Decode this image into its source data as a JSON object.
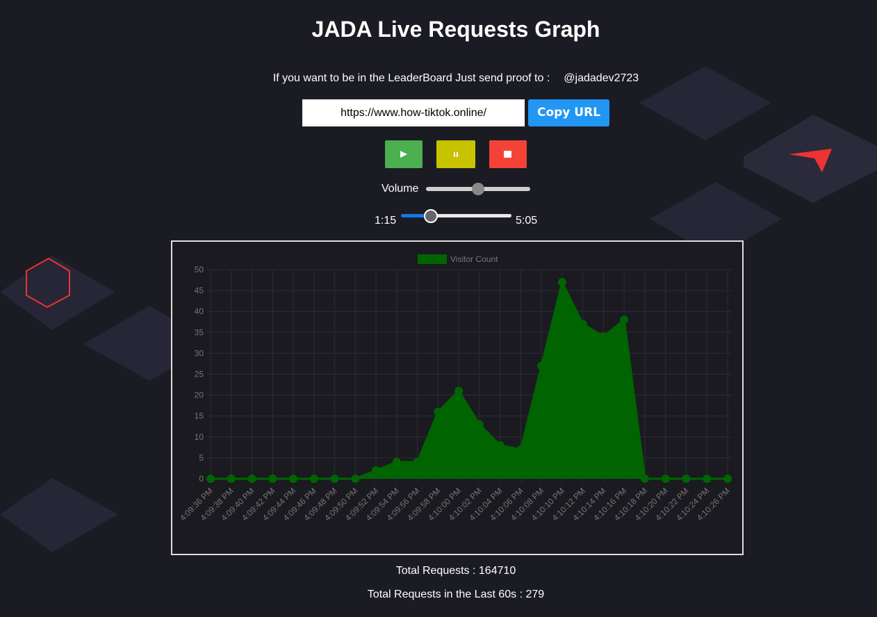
{
  "header": {
    "title": "JADA Live Requests Graph"
  },
  "leaderboard": {
    "text": "If you want to be in the LeaderBoard Just send proof to :",
    "handle": "@jadadev2723"
  },
  "url": {
    "value": "https://www.how-tiktok.online/",
    "button": "Copy URL"
  },
  "volume": {
    "label": "Volume"
  },
  "player": {
    "current": "1:15",
    "duration": "5:05"
  },
  "chart_data": {
    "type": "area",
    "categories": [
      "4:09:36 PM",
      "4:09:38 PM",
      "4:09:40 PM",
      "4:09:42 PM",
      "4:09:44 PM",
      "4:09:46 PM",
      "4:09:48 PM",
      "4:09:50 PM",
      "4:09:52 PM",
      "4:09:54 PM",
      "4:09:56 PM",
      "4:09:58 PM",
      "4:10:00 PM",
      "4:10:02 PM",
      "4:10:04 PM",
      "4:10:06 PM",
      "4:10:08 PM",
      "4:10:10 PM",
      "4:10:12 PM",
      "4:10:14 PM",
      "4:10:16 PM",
      "4:10:18 PM",
      "4:10:20 PM",
      "4:10:22 PM",
      "4:10:24 PM",
      "4:10:26 PM"
    ],
    "series": [
      {
        "name": "Visitor Count",
        "color": "#006400",
        "values": [
          0,
          0,
          0,
          0,
          0,
          0,
          0,
          0,
          2,
          4,
          4,
          16,
          21,
          13,
          8,
          7,
          27,
          47,
          37,
          34,
          38,
          0,
          0,
          0,
          0,
          0
        ]
      }
    ],
    "ylim": [
      0,
      50
    ],
    "yticks": [
      0,
      5,
      10,
      15,
      20,
      25,
      30,
      35,
      40,
      45,
      50
    ],
    "grid": true,
    "legend": "top"
  },
  "stats": {
    "total": "Total Requests : 164710",
    "last60": "Total Requests in the Last 60s : 279"
  }
}
